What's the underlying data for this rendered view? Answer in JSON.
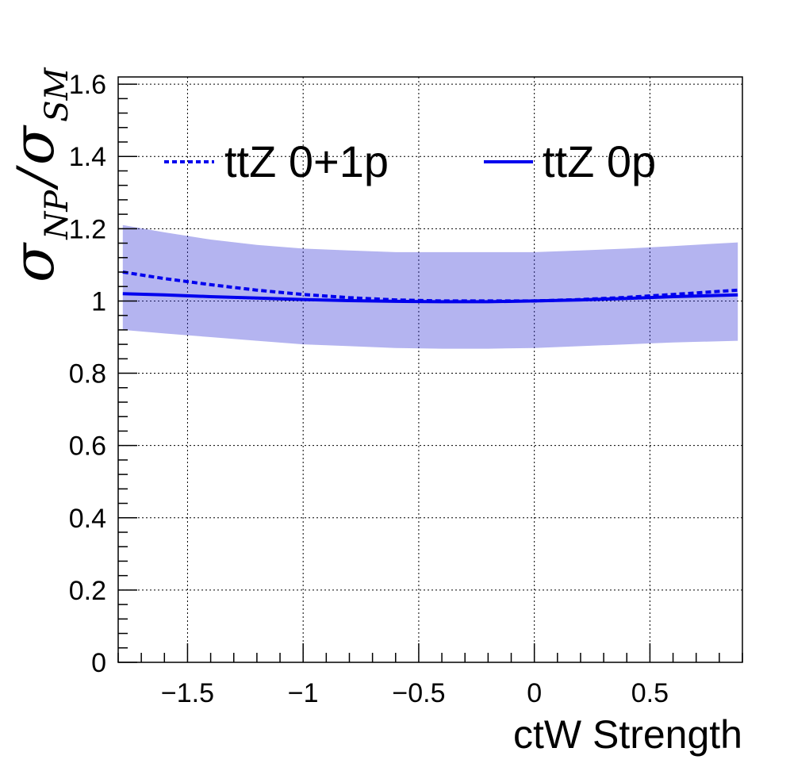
{
  "chart_data": {
    "type": "line",
    "xlabel": "ctW Strength",
    "ylabel": {
      "main_symbol": "σ",
      "numerator_sub": "NP",
      "slash": "/",
      "denominator_symbol": "σ",
      "denominator_sub": "SM"
    },
    "xlim": [
      -1.8,
      0.9
    ],
    "ylim": [
      0,
      1.62
    ],
    "x_ticks": [
      {
        "value": -1.5,
        "label": "−1.5"
      },
      {
        "value": -1.0,
        "label": "−1"
      },
      {
        "value": -0.5,
        "label": "−0.5"
      },
      {
        "value": 0.0,
        "label": "0"
      },
      {
        "value": 0.5,
        "label": "0.5"
      }
    ],
    "y_ticks": [
      {
        "value": 0,
        "label": "0"
      },
      {
        "value": 0.2,
        "label": "0.2"
      },
      {
        "value": 0.4,
        "label": "0.4"
      },
      {
        "value": 0.6,
        "label": "0.6"
      },
      {
        "value": 0.8,
        "label": "0.8"
      },
      {
        "value": 1.0,
        "label": "1"
      },
      {
        "value": 1.2,
        "label": "1.2"
      },
      {
        "value": 1.4,
        "label": "1.4"
      },
      {
        "value": 1.6,
        "label": "1.6"
      }
    ],
    "grid": true,
    "legend_position": "top",
    "series": [
      {
        "name": "ttZ 0+1p",
        "style": "dashed",
        "color": "#0000ee",
        "x": [
          -1.78,
          -1.6,
          -1.4,
          -1.2,
          -1.0,
          -0.8,
          -0.6,
          -0.4,
          -0.2,
          0.0,
          0.2,
          0.4,
          0.6,
          0.88
        ],
        "y": [
          1.08,
          1.062,
          1.045,
          1.03,
          1.018,
          1.009,
          1.003,
          1.0,
          1.0,
          1.0,
          1.004,
          1.01,
          1.018,
          1.03
        ]
      },
      {
        "name": "ttZ 0p",
        "style": "solid",
        "color": "#0000ee",
        "x": [
          -1.78,
          -1.6,
          -1.4,
          -1.2,
          -1.0,
          -0.8,
          -0.6,
          -0.4,
          -0.2,
          0.0,
          0.2,
          0.4,
          0.6,
          0.88
        ],
        "y": [
          1.02,
          1.017,
          1.012,
          1.008,
          1.004,
          1.001,
          0.999,
          0.998,
          0.998,
          1.0,
          1.003,
          1.007,
          1.012,
          1.017
        ]
      }
    ],
    "band": {
      "color": "#3a3ad8",
      "x": [
        -1.78,
        -1.6,
        -1.4,
        -1.2,
        -1.0,
        -0.8,
        -0.6,
        -0.4,
        -0.2,
        0.0,
        0.2,
        0.4,
        0.6,
        0.88
      ],
      "upper": [
        1.21,
        1.19,
        1.17,
        1.155,
        1.145,
        1.14,
        1.135,
        1.135,
        1.135,
        1.135,
        1.14,
        1.145,
        1.152,
        1.162
      ],
      "lower": [
        0.92,
        0.91,
        0.9,
        0.89,
        0.88,
        0.875,
        0.87,
        0.868,
        0.868,
        0.87,
        0.875,
        0.88,
        0.885,
        0.89
      ]
    }
  }
}
